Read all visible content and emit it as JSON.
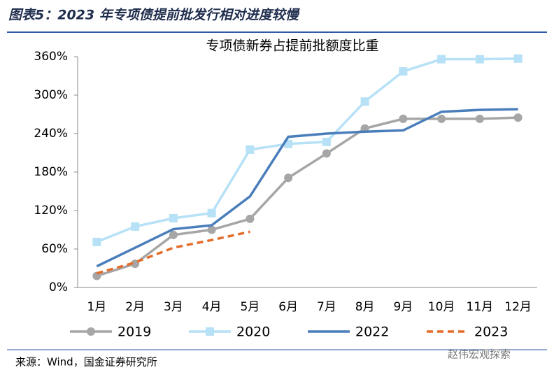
{
  "header": {
    "title": "图表5：2023 年专项债提前批发行相对进度较慢"
  },
  "chart_data": {
    "type": "line",
    "title": "专项债新券占提前批额度比重",
    "categories": [
      "1月",
      "2月",
      "3月",
      "4月",
      "5月",
      "6月",
      "7月",
      "8月",
      "9月",
      "10月",
      "11月",
      "12月"
    ],
    "series": [
      {
        "name": "2019",
        "color": "#a6a6a6",
        "marker": "circle",
        "dash": false,
        "values": [
          18,
          37,
          82,
          90,
          107,
          171,
          209,
          248,
          263,
          263,
          263,
          265
        ]
      },
      {
        "name": "2020",
        "color": "#b7e1f6",
        "marker": "square",
        "dash": false,
        "values": [
          71,
          95,
          108,
          116,
          215,
          224,
          227,
          290,
          337,
          356,
          356,
          357
        ]
      },
      {
        "name": "2022",
        "color": "#4a7ebb",
        "marker": "none",
        "dash": false,
        "values": [
          33,
          62,
          91,
          97,
          142,
          235,
          240,
          243,
          245,
          274,
          277,
          278
        ]
      },
      {
        "name": "2023",
        "color": "#e46c2a",
        "marker": "none",
        "dash": true,
        "values": [
          22,
          39,
          62,
          74,
          87,
          null,
          null,
          null,
          null,
          null,
          null,
          null
        ]
      }
    ],
    "ylim": [
      0,
      360
    ],
    "yticks": [
      {
        "value": 0,
        "label": "0%"
      },
      {
        "value": 60,
        "label": "60%"
      },
      {
        "value": 120,
        "label": "120%"
      },
      {
        "value": 180,
        "label": "180%"
      },
      {
        "value": 240,
        "label": "240%"
      },
      {
        "value": 300,
        "label": "300%"
      },
      {
        "value": 360,
        "label": "360%"
      }
    ],
    "grid": false,
    "legend": "bottom"
  },
  "footer": {
    "source": "来源：Wind，国金证券研究所",
    "watermark": "赵伟宏观探索"
  }
}
